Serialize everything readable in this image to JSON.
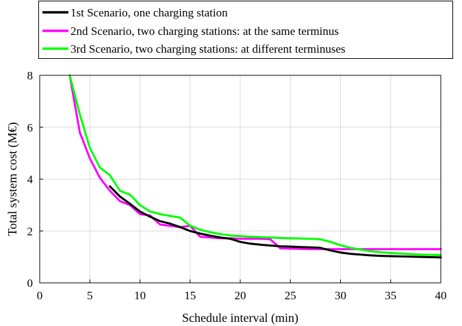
{
  "chart_data": {
    "type": "line",
    "title": "",
    "xlabel": "Schedule interval (min)",
    "ylabel": "Total system cost (M€)",
    "xlim": [
      0,
      40
    ],
    "ylim": [
      0,
      8
    ],
    "xticks": [
      0,
      5,
      10,
      15,
      20,
      25,
      30,
      35,
      40
    ],
    "yticks": [
      0,
      2,
      4,
      6,
      8
    ],
    "grid": true,
    "legend_position": "top, outside plot area",
    "series": [
      {
        "name": "1st Scenario, one charging station",
        "color": "#000000",
        "x": [
          7,
          8,
          9,
          10,
          11,
          12,
          13,
          14,
          15,
          16,
          17,
          18,
          19,
          20,
          21,
          22,
          23,
          24,
          25,
          26,
          27,
          28,
          29,
          30,
          31,
          32,
          33,
          34,
          35,
          36,
          37,
          38,
          39,
          40
        ],
        "y": [
          3.72,
          3.33,
          3.05,
          2.75,
          2.55,
          2.38,
          2.28,
          2.15,
          2.0,
          1.9,
          1.82,
          1.75,
          1.7,
          1.58,
          1.51,
          1.47,
          1.44,
          1.41,
          1.4,
          1.38,
          1.37,
          1.35,
          1.25,
          1.17,
          1.12,
          1.09,
          1.06,
          1.04,
          1.03,
          1.02,
          1.01,
          1.0,
          0.99,
          0.98
        ]
      },
      {
        "name": "2nd Scenario, two charging stations: at the same terminus",
        "color": "#ff00ff",
        "x": [
          3,
          4,
          5,
          6,
          7,
          8,
          9,
          10,
          11,
          12,
          13,
          14,
          15,
          16,
          17,
          18,
          19,
          20,
          21,
          22,
          23,
          24,
          25,
          26,
          27,
          28,
          29,
          30,
          31,
          32,
          33,
          34,
          35,
          36,
          37,
          38,
          39,
          40
        ],
        "y": [
          8.0,
          5.8,
          4.8,
          4.05,
          3.55,
          3.15,
          3.0,
          2.65,
          2.6,
          2.25,
          2.2,
          2.15,
          2.2,
          1.78,
          1.75,
          1.72,
          1.72,
          1.7,
          1.7,
          1.7,
          1.68,
          1.33,
          1.32,
          1.31,
          1.3,
          1.3,
          1.3,
          1.3,
          1.3,
          1.3,
          1.3,
          1.3,
          1.3,
          1.3,
          1.3,
          1.3,
          1.3,
          1.3
        ]
      },
      {
        "name": "3rd Scenario, two charging stations: at different terminuses",
        "color": "#00ff00",
        "x": [
          3,
          4,
          5,
          6,
          7,
          8,
          9,
          10,
          11,
          12,
          13,
          14,
          15,
          16,
          17,
          18,
          19,
          20,
          21,
          22,
          23,
          24,
          25,
          26,
          27,
          28,
          29,
          30,
          31,
          32,
          33,
          34,
          35,
          36,
          37,
          38,
          39,
          40
        ],
        "y": [
          8.0,
          6.5,
          5.2,
          4.45,
          4.15,
          3.55,
          3.4,
          3.0,
          2.75,
          2.65,
          2.58,
          2.52,
          2.2,
          2.05,
          1.95,
          1.88,
          1.83,
          1.8,
          1.78,
          1.76,
          1.75,
          1.73,
          1.72,
          1.71,
          1.7,
          1.68,
          1.58,
          1.45,
          1.35,
          1.28,
          1.22,
          1.18,
          1.15,
          1.13,
          1.11,
          1.09,
          1.08,
          1.07
        ]
      }
    ]
  }
}
